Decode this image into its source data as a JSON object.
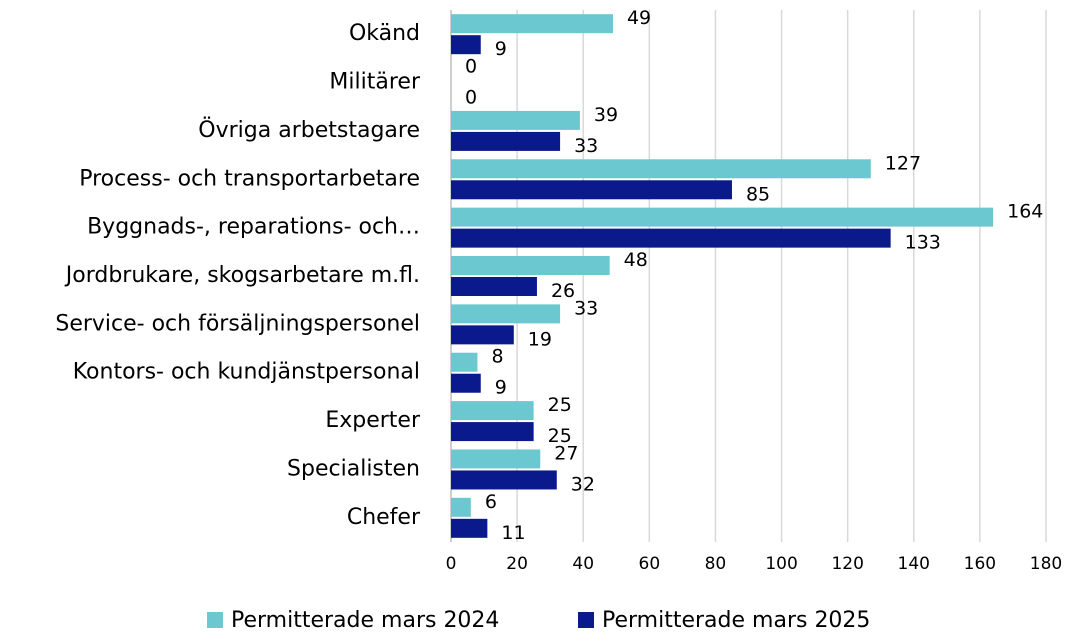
{
  "chart_data": {
    "type": "barh",
    "categories": [
      "Okänd",
      "Militärer",
      "Övriga arbetstagare",
      "Process- och transportarbetare",
      "Byggnads-, reparations- och…",
      "Jordbrukare, skogsarbetare m.fl.",
      "Service- och försäljningspersonel",
      "Kontors- och kundjänstpersonal",
      "Experter",
      "Specialisten",
      "Chefer"
    ],
    "series": [
      {
        "name": "Permitterade mars 2024",
        "color": "#6cc8d0",
        "values": [
          49,
          0,
          39,
          127,
          164,
          48,
          33,
          8,
          25,
          27,
          6
        ]
      },
      {
        "name": "Permitterade mars 2025",
        "color": "#0a1a8c",
        "values": [
          9,
          0,
          33,
          85,
          133,
          26,
          19,
          9,
          25,
          32,
          11
        ]
      }
    ],
    "xlim": [
      0,
      180
    ],
    "xticks": [
      0,
      20,
      40,
      60,
      80,
      100,
      120,
      140,
      160,
      180
    ],
    "grid": true,
    "legend": "bottom"
  }
}
